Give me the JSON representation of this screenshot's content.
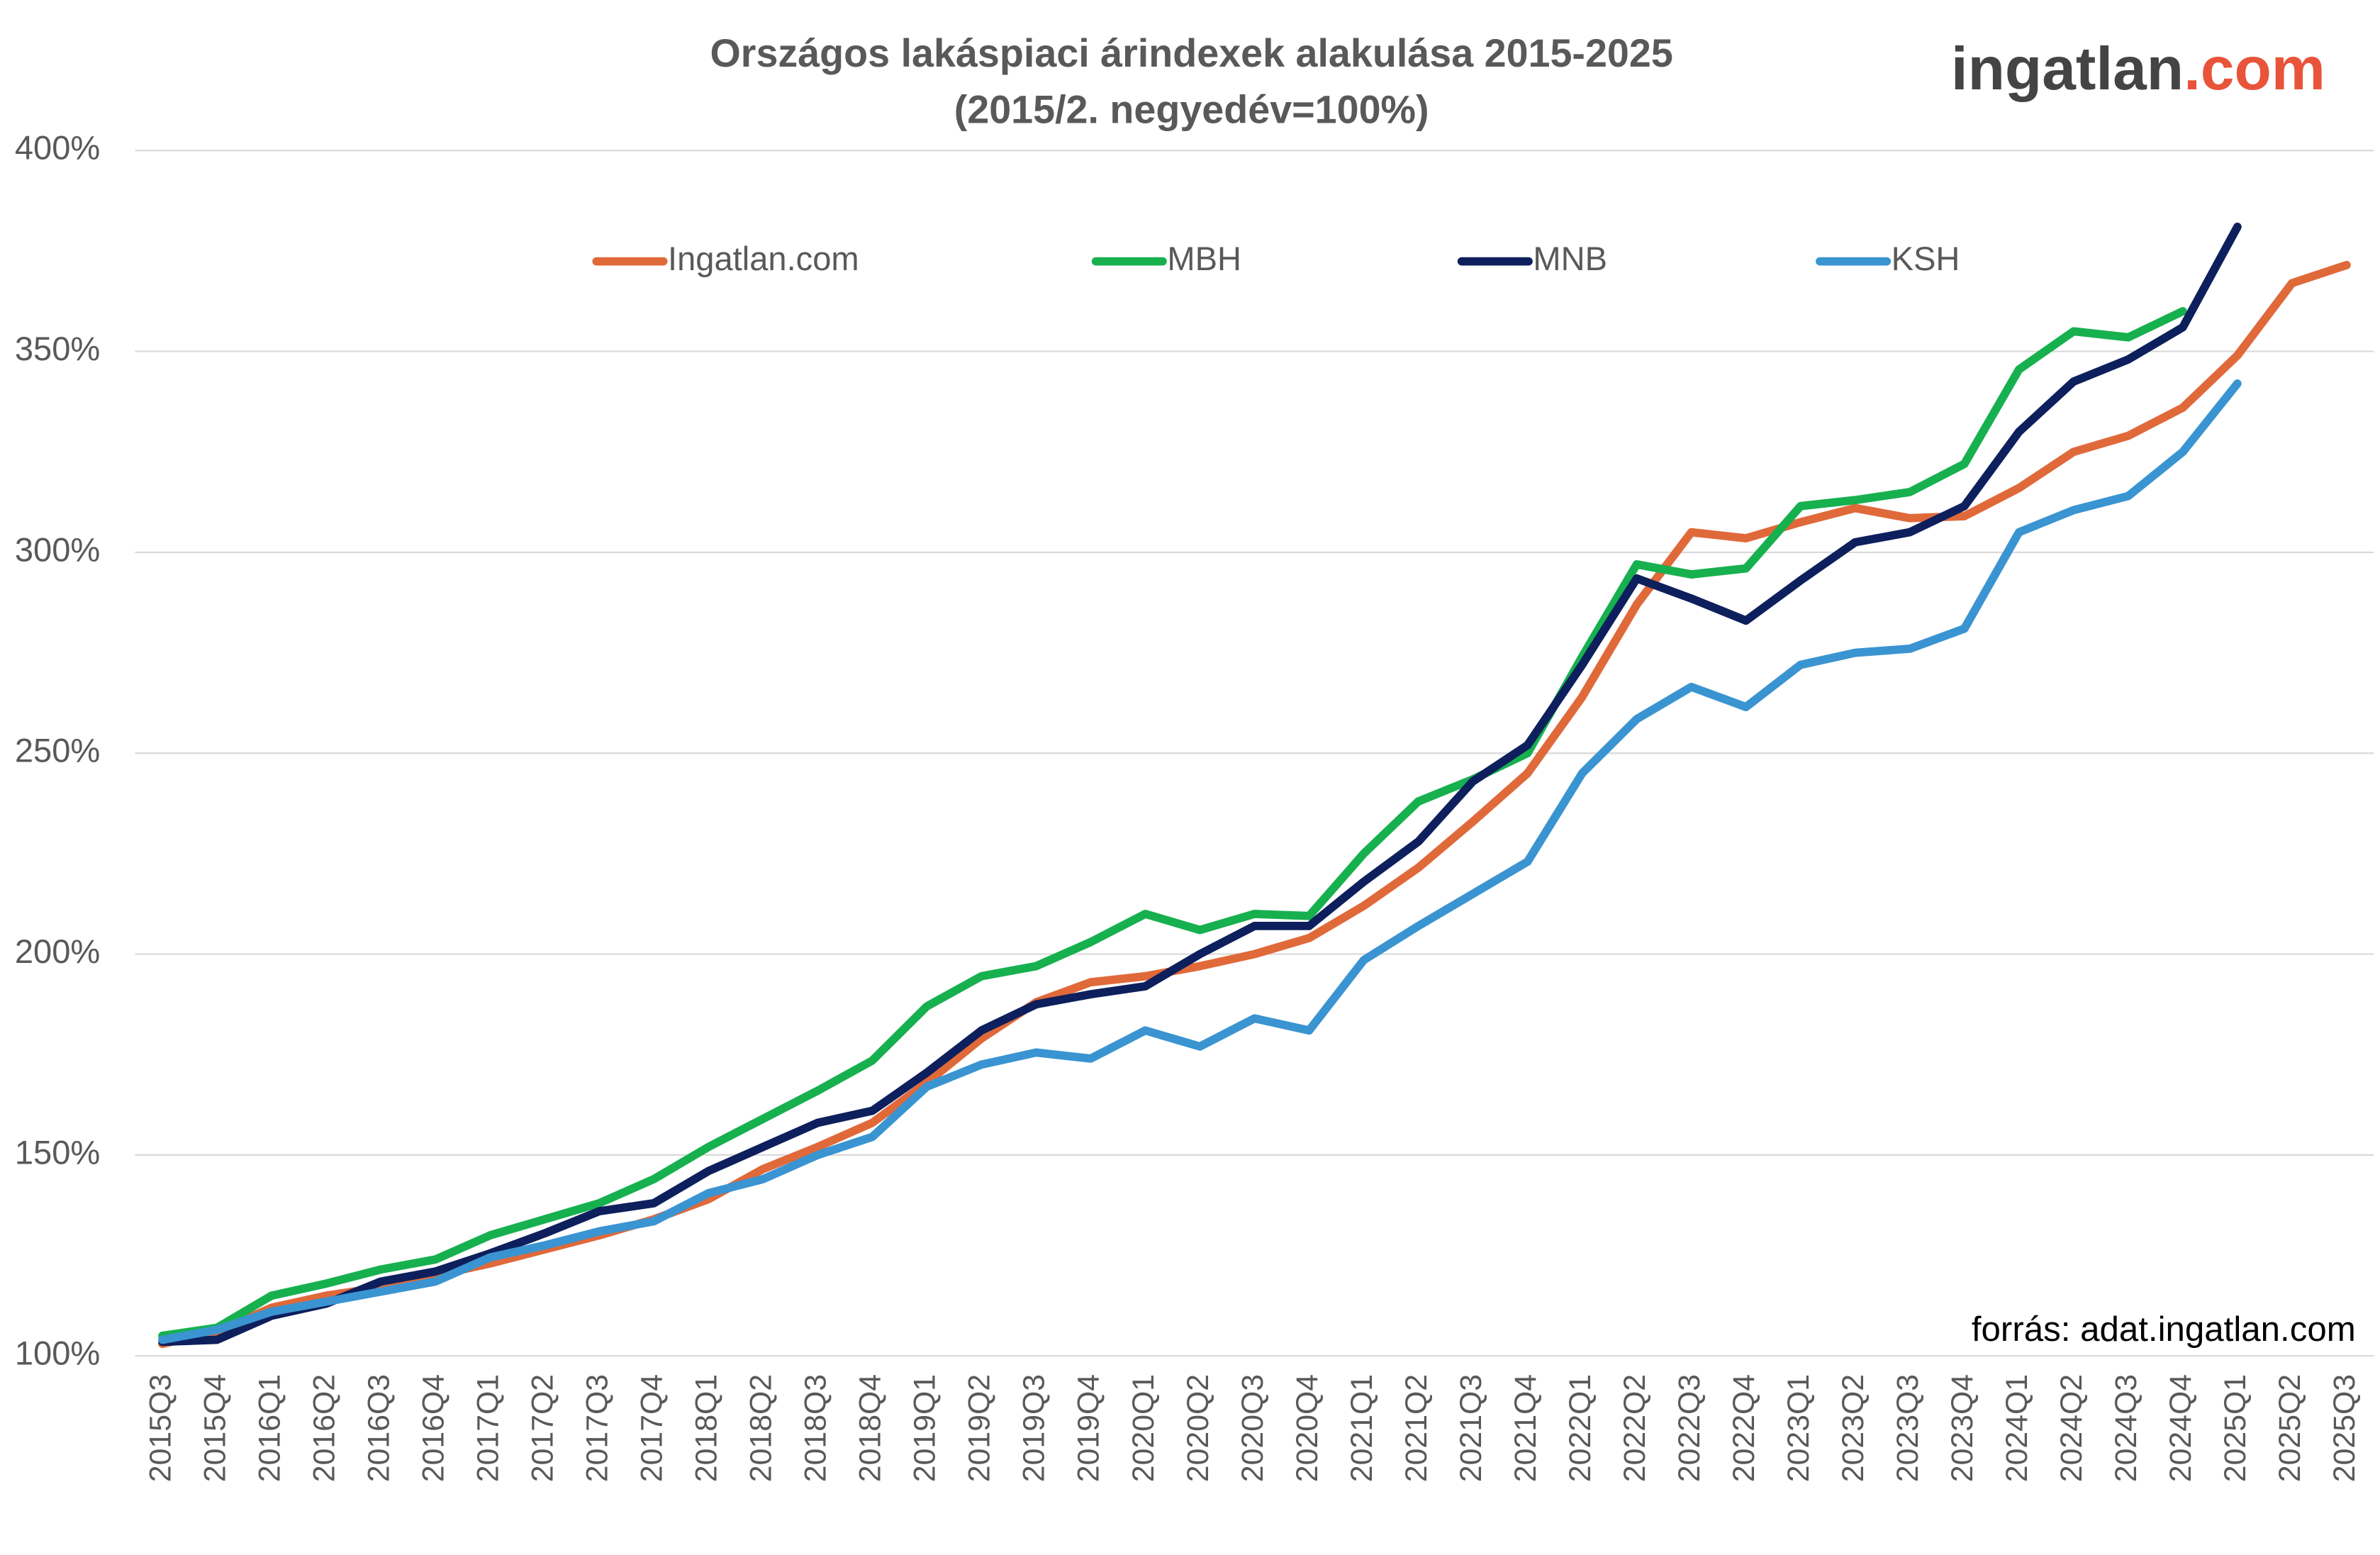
{
  "chart_data": {
    "type": "line",
    "title": "Országos lakáspiaci árindexek alakulása 2015-2025",
    "subtitle": "(2015/2. negyedév=100%)",
    "logo": {
      "name": "ingatlan",
      "suffix": ".com"
    },
    "source": "forrás: adat.ingatlan.com",
    "categories": [
      "2015Q3",
      "2015Q4",
      "2016Q1",
      "2016Q2",
      "2016Q3",
      "2016Q4",
      "2017Q1",
      "2017Q2",
      "2017Q3",
      "2017Q4",
      "2018Q1",
      "2018Q2",
      "2018Q3",
      "2018Q4",
      "2019Q1",
      "2019Q2",
      "2019Q3",
      "2019Q4",
      "2020Q1",
      "2020Q2",
      "2020Q3",
      "2020Q4",
      "2021Q1",
      "2021Q2",
      "2021Q3",
      "2021Q4",
      "2022Q1",
      "2022Q2",
      "2022Q3",
      "2022Q4",
      "2023Q1",
      "2023Q2",
      "2023Q3",
      "2023Q4",
      "2024Q1",
      "2024Q2",
      "2024Q3",
      "2024Q4",
      "2025Q1",
      "2025Q2",
      "2025Q3"
    ],
    "series": [
      {
        "name": "Ingatlan.com",
        "color": "#e0693a",
        "values": [
          103,
          106,
          112,
          115,
          117,
          120,
          123,
          126.5,
          130,
          134,
          139,
          146.5,
          152,
          158,
          168,
          179,
          188,
          193,
          194.5,
          197,
          200,
          204,
          212,
          221.5,
          233,
          245,
          264,
          287,
          305,
          303.5,
          307.5,
          311,
          308.5,
          309,
          316,
          325,
          329,
          336,
          349,
          367,
          371.5
        ]
      },
      {
        "name": "MBH",
        "color": "#17b04f",
        "values": [
          105,
          107,
          115,
          118,
          121.5,
          124,
          130,
          134,
          138,
          144,
          152,
          159,
          166,
          173.5,
          187,
          194.5,
          197,
          203,
          210,
          206,
          210,
          209.5,
          225,
          238,
          243.5,
          250,
          274,
          297,
          294.5,
          296,
          311.5,
          313,
          315,
          322,
          345.5,
          355,
          353.5,
          360,
          null,
          null,
          null
        ]
      },
      {
        "name": "MNB",
        "color": "#0d1f5c",
        "values": [
          103.5,
          104,
          110,
          113,
          118.5,
          121,
          125.5,
          130.5,
          136,
          138,
          146,
          152,
          158,
          161,
          170.5,
          181,
          187.5,
          190,
          192,
          200,
          207,
          207,
          218,
          228,
          243,
          252,
          272,
          293.5,
          288.5,
          283,
          293,
          302.5,
          305,
          311.5,
          330,
          342.5,
          348,
          356,
          381,
          null,
          null
        ]
      },
      {
        "name": "KSH",
        "color": "#3a94d1",
        "values": [
          104,
          106.5,
          111,
          113.5,
          116,
          118.5,
          124.5,
          127.5,
          131,
          133.5,
          140.5,
          144,
          150,
          154.5,
          167,
          172.5,
          175.5,
          174,
          181,
          177,
          184,
          181,
          198.5,
          207,
          215,
          223,
          245,
          258.5,
          266.5,
          261.5,
          272,
          275,
          276,
          281,
          305,
          310.5,
          314,
          325,
          342,
          null,
          null
        ]
      }
    ],
    "ylim": [
      100,
      400
    ],
    "yticks": [
      {
        "value": 100,
        "label": "100%"
      },
      {
        "value": 150,
        "label": "150%"
      },
      {
        "value": 200,
        "label": "200%"
      },
      {
        "value": 250,
        "label": "250%"
      },
      {
        "value": 300,
        "label": "300%"
      },
      {
        "value": 350,
        "label": "350%"
      },
      {
        "value": 400,
        "label": "400%"
      }
    ],
    "grid": true
  }
}
